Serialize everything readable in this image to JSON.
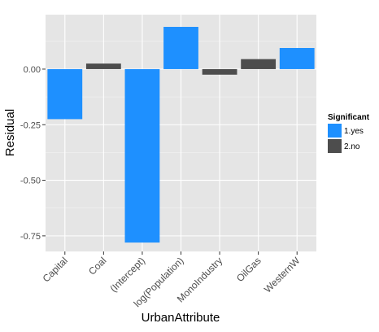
{
  "chart_data": {
    "type": "bar",
    "xlabel": "UrbanAttribute",
    "ylabel": "Residual",
    "categories": [
      "Capital",
      "Coal",
      "(Intercept)",
      "log(Population)",
      "MonoIndustry",
      "OilGas",
      "WesternW"
    ],
    "values": [
      -0.225,
      0.025,
      -0.78,
      0.19,
      -0.025,
      0.045,
      0.095
    ],
    "groups": [
      "1.yes",
      "2.no",
      "1.yes",
      "1.yes",
      "2.no",
      "2.no",
      "1.yes"
    ],
    "ylim": [
      -0.82,
      0.245
    ],
    "yticks": [
      0.0,
      -0.25,
      -0.5,
      -0.75
    ],
    "ytick_labels": [
      "0.00",
      "-0.25",
      "-0.50",
      "-0.75"
    ],
    "grid": true,
    "legend": {
      "title": "Significant",
      "position": "right",
      "entries": [
        {
          "label": "1.yes",
          "color": "#1e90ff"
        },
        {
          "label": "2.no",
          "color": "#4d4d4d"
        }
      ]
    },
    "colors": {
      "panel": "#e5e5e5",
      "grid_major": "#ffffff",
      "grid_minor": "#f2f2f2",
      "tick_text": "#4d4d4d"
    }
  }
}
